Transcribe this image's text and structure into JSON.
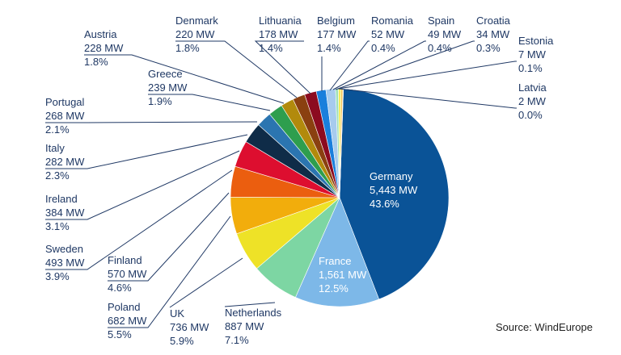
{
  "chart_data": {
    "type": "pie",
    "unit": "MW",
    "slices": [
      {
        "label": "Germany",
        "value_text": "5,443 MW",
        "value": 5443,
        "percent_text": "43.6%",
        "color": "#0a5397"
      },
      {
        "label": "France",
        "value_text": "1,561 MW",
        "value": 1561,
        "percent_text": "12.5%",
        "color": "#7db8e8"
      },
      {
        "label": "Netherlands",
        "value_text": "887 MW",
        "value": 887,
        "percent_text": "7.1%",
        "color": "#7dd6a3"
      },
      {
        "label": "UK",
        "value_text": "736 MW",
        "value": 736,
        "percent_text": "5.9%",
        "color": "#eee227"
      },
      {
        "label": "Poland",
        "value_text": "682 MW",
        "value": 682,
        "percent_text": "5.5%",
        "color": "#f2ad0c"
      },
      {
        "label": "Finland",
        "value_text": "570 MW",
        "value": 570,
        "percent_text": "4.6%",
        "color": "#eb5e0f"
      },
      {
        "label": "Sweden",
        "value_text": "493 MW",
        "value": 493,
        "percent_text": "3.9%",
        "color": "#dd0e2f"
      },
      {
        "label": "Ireland",
        "value_text": "384 MW",
        "value": 384,
        "percent_text": "3.1%",
        "color": "#0f2c48"
      },
      {
        "label": "Italy",
        "value_text": "282 MW",
        "value": 282,
        "percent_text": "2.3%",
        "color": "#2b75b0"
      },
      {
        "label": "Portugal",
        "value_text": "268 MW",
        "value": 268,
        "percent_text": "2.1%",
        "color": "#2e9e4e"
      },
      {
        "label": "Greece",
        "value_text": "239 MW",
        "value": 239,
        "percent_text": "1.9%",
        "color": "#b28a0c"
      },
      {
        "label": "Austria",
        "value_text": "228 MW",
        "value": 228,
        "percent_text": "1.8%",
        "color": "#8a4010"
      },
      {
        "label": "Denmark",
        "value_text": "220 MW",
        "value": 220,
        "percent_text": "1.8%",
        "color": "#8c0b20"
      },
      {
        "label": "Lithuania",
        "value_text": "178 MW",
        "value": 178,
        "percent_text": "1.4%",
        "color": "#1a7fdc"
      },
      {
        "label": "Belgium",
        "value_text": "177 MW",
        "value": 177,
        "percent_text": "1.4%",
        "color": "#a7cbee"
      },
      {
        "label": "Romania",
        "value_text": "52 MW",
        "value": 52,
        "percent_text": "0.4%",
        "color": "#9ee0b8"
      },
      {
        "label": "Spain",
        "value_text": "49 MW",
        "value": 49,
        "percent_text": "0.4%",
        "color": "#f5ec5a"
      },
      {
        "label": "Croatia",
        "value_text": "34 MW",
        "value": 34,
        "percent_text": "0.3%",
        "color": "#f5c050"
      },
      {
        "label": "Estonia",
        "value_text": "7 MW",
        "value": 7,
        "percent_text": "0.1%",
        "color": "#f08040"
      },
      {
        "label": "Latvia",
        "value_text": "2 MW",
        "value": 2,
        "percent_text": "0.0%",
        "color": "#e83050"
      }
    ]
  },
  "source": "Source: WindEurope"
}
